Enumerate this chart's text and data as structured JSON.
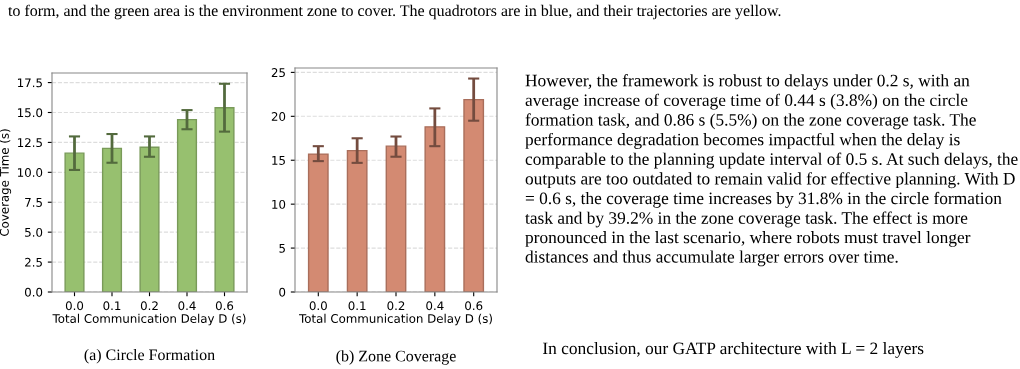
{
  "chart_data": [
    {
      "type": "bar",
      "title": "(a) Circle Formation",
      "xlabel": "Total Communication Delay D (s)",
      "ylabel": "Coverage Time (s)",
      "categories": [
        "0.0",
        "0.1",
        "0.2",
        "0.4",
        "0.6"
      ],
      "values": [
        11.6,
        12.0,
        12.1,
        14.4,
        15.4
      ],
      "errors": [
        [
          10.2,
          13.0
        ],
        [
          10.8,
          13.2
        ],
        [
          11.3,
          13.0
        ],
        [
          13.6,
          15.2
        ],
        [
          13.4,
          17.4
        ]
      ],
      "color": "#97c06f",
      "ylim": [
        0,
        18.3
      ],
      "yticks": [
        {
          "value": 0,
          "label": "0.0"
        },
        2.5,
        {
          "value": 5,
          "label": "5.0"
        },
        7.5,
        {
          "value": 10,
          "label": "10.0"
        },
        12.5,
        {
          "value": 15,
          "label": "15.0"
        },
        17.5
      ],
      "grid": "y",
      "annotations": [
        "to form, and the green area is the environment zone to cover. The quadrotors are in blue, and their trajectories are yellow."
      ]
    },
    {
      "type": "bar",
      "title": "(b) Zone Coverage",
      "xlabel": "Total Communication Delay D (s)",
      "categories": [
        "0.0",
        "0.1",
        "0.2",
        "0.4",
        "0.6"
      ],
      "values": [
        15.7,
        16.1,
        16.6,
        18.8,
        21.9
      ],
      "errors": [
        [
          14.9,
          16.6
        ],
        [
          14.7,
          17.5
        ],
        [
          15.4,
          17.7
        ],
        [
          16.6,
          20.9
        ],
        [
          19.5,
          24.3
        ]
      ],
      "color": "#d38a72",
      "ylim": [
        0,
        25.5
      ],
      "yticks": [
        0,
        5,
        10,
        15,
        20,
        25
      ],
      "grid": "y",
      "annotations": [
        "However, the framework is robust to delays under 0.2 s, with an average increase of coverage time of 0.44 s (3.8%) on the circle formation task, and 0.86 s (5.5%) on the zone coverage task. The performance degradation becomes impactful when the delay is comparable to the planning update interval of 0.5 s. At such delays, the outputs are too outdated to remain valid for effective planning. With D = 0.6 s, the coverage time increases by 31.8% in the circle formation task and by 39.2% in the zone coverage task. The effect is more pronounced in the last scenario, where robots must travel longer distances and thus accumulate larger errors over time.",
        "    In conclusion, our GATP architecture with L = 2 layers"
      ]
    }
  ]
}
